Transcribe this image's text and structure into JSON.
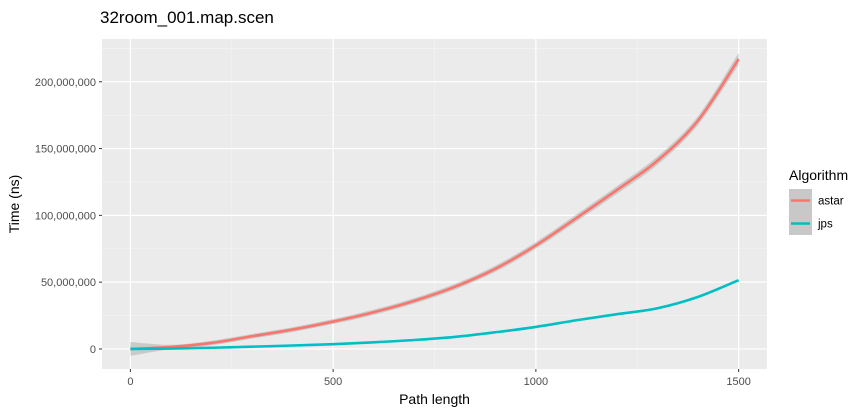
{
  "chart_data": {
    "type": "line",
    "title": "32room_001.map.scen",
    "xlabel": "Path length",
    "ylabel": "Time (ns)",
    "xlim": [
      -70,
      1570
    ],
    "ylim": [
      -15000000,
      232000000
    ],
    "x_ticks": [
      0,
      500,
      1000,
      1500
    ],
    "x_tick_labels": [
      "0",
      "500",
      "1000",
      "1500"
    ],
    "y_ticks": [
      0,
      50000000,
      100000000,
      150000000,
      200000000
    ],
    "y_tick_labels": [
      "0",
      "50,000,000",
      "100,000,000",
      "150,000,000",
      "200,000,000"
    ],
    "grid": true,
    "legend": {
      "title": "Algorithm",
      "position": "right"
    },
    "series": [
      {
        "name": "astar",
        "color": "#f8766d",
        "confidence_band": true,
        "x": [
          0,
          100,
          200,
          300,
          400,
          500,
          600,
          700,
          800,
          900,
          1000,
          1100,
          1200,
          1300,
          1400,
          1500
        ],
        "y": [
          0,
          1500000,
          4500000,
          9500000,
          14500000,
          20500000,
          27500000,
          36000000,
          46500000,
          60000000,
          77500000,
          98000000,
          119000000,
          141000000,
          171000000,
          217000000
        ]
      },
      {
        "name": "jps",
        "color": "#00bfc4",
        "confidence_band": false,
        "x": [
          0,
          100,
          200,
          300,
          400,
          500,
          600,
          700,
          800,
          900,
          1000,
          1100,
          1200,
          1300,
          1400,
          1500
        ],
        "y": [
          0,
          300000,
          900000,
          1700000,
          2600000,
          3600000,
          5000000,
          6700000,
          9000000,
          12500000,
          16500000,
          21500000,
          26000000,
          30500000,
          39000000,
          51500000
        ]
      }
    ]
  }
}
